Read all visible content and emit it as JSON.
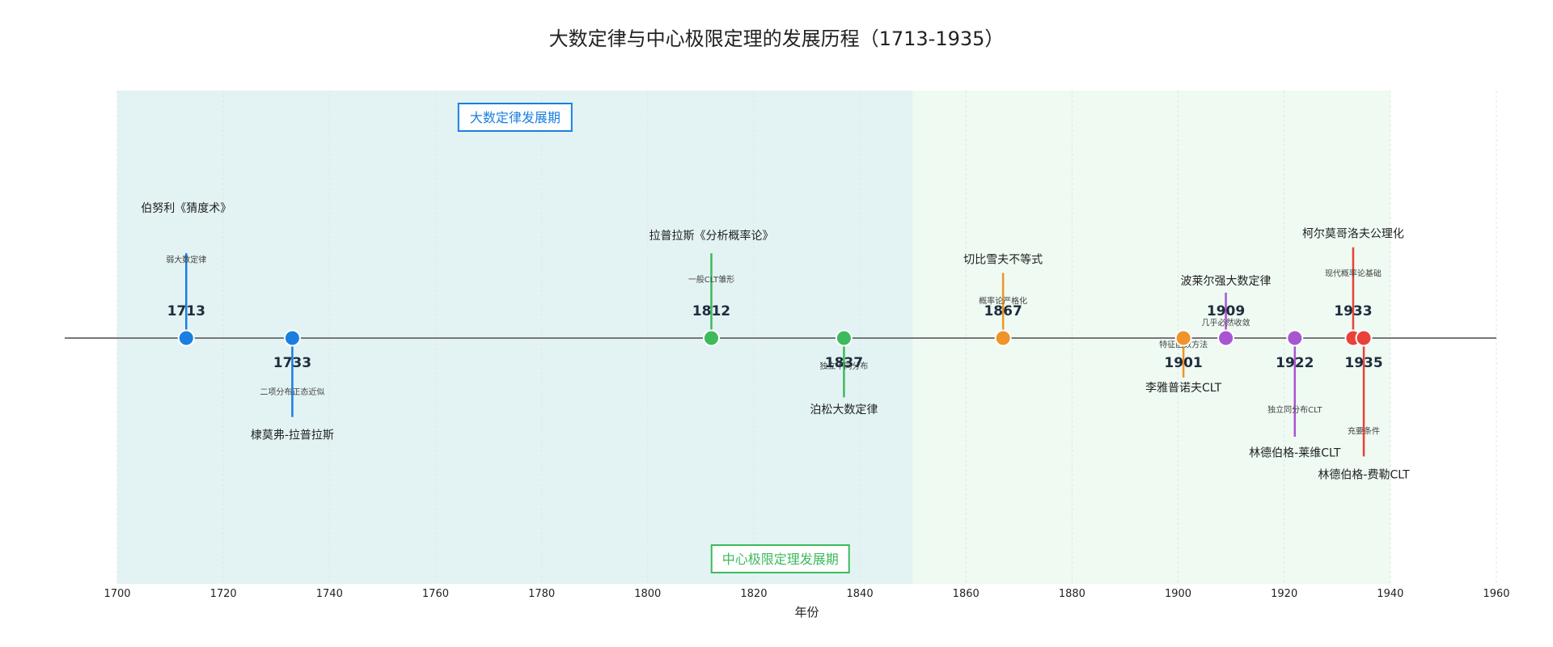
{
  "chart_data": {
    "type": "scatter",
    "title": "大数定律与中心极限定理的发展历程（1713-1935）",
    "xlabel": "年份",
    "ylabel": "",
    "xlim": [
      1700,
      1960
    ],
    "ylim": [
      -1,
      1
    ],
    "xticks": [
      1700,
      1720,
      1740,
      1760,
      1780,
      1800,
      1820,
      1840,
      1860,
      1880,
      1900,
      1920,
      1940,
      1960
    ],
    "xtick_labels": [
      "1700",
      "1720",
      "1740",
      "1760",
      "1780",
      "1800",
      "1820",
      "1840",
      "1860",
      "1880",
      "1900",
      "1920",
      "1940",
      "1960"
    ],
    "grid": true,
    "colors": {
      "blue": "#1a7fe0",
      "green": "#3cba5c",
      "orange": "#f0932a",
      "purple": "#a855d1",
      "red": "#e8423a",
      "period_lln_fill": "#e3f3f4",
      "period_clt_fill": "#eefaf2"
    },
    "periods": [
      {
        "name": "大数定律发展期",
        "x_start": 1700,
        "x_end": 1850,
        "label_year": 1775,
        "label_position": "top",
        "color": "#1a7fe0"
      },
      {
        "name": "中心极限定理发展期",
        "x_start": 1850,
        "x_end": 1940,
        "label_year": 1825,
        "label_position": "bottom",
        "color": "#3cba5c"
      }
    ],
    "events": [
      {
        "year": 1713,
        "year_label": "1713",
        "title": "伯努利《猜度术》",
        "desc": "弱大数定律",
        "side": "above",
        "color": "#1a7fe0",
        "line_height": 0.43,
        "desc_offset": 0.4,
        "title_offset": 0.66
      },
      {
        "year": 1733,
        "year_label": "1733",
        "title": "棣莫弗-拉普拉斯",
        "desc": "二项分布正态近似",
        "side": "below",
        "color": "#1a7fe0",
        "line_height": 0.4,
        "desc_offset": 0.27,
        "title_offset": 0.49
      },
      {
        "year": 1812,
        "year_label": "1812",
        "title": "拉普拉斯《分析概率论》",
        "desc": "一般CLT雏形",
        "side": "above",
        "color": "#3cba5c",
        "line_height": 0.43,
        "desc_offset": 0.3,
        "title_offset": 0.52
      },
      {
        "year": 1837,
        "year_label": "1837",
        "title": "泊松大数定律",
        "desc": "独立不同分布",
        "side": "below",
        "color": "#3cba5c",
        "line_height": 0.3,
        "desc_offset": 0.14,
        "title_offset": 0.36
      },
      {
        "year": 1867,
        "year_label": "1867",
        "title": "切比雪夫不等式",
        "desc": "概率论严格化",
        "side": "above",
        "color": "#f0932a",
        "line_height": 0.33,
        "desc_offset": 0.19,
        "title_offset": 0.4
      },
      {
        "year": 1901,
        "year_label": "1901",
        "title": "李雅普诺夫CLT",
        "desc": "特征函数方法",
        "side": "below",
        "color": "#f0932a",
        "line_height": 0.2,
        "desc_offset": 0.03,
        "title_offset": 0.25
      },
      {
        "year": 1909,
        "year_label": "1909",
        "title": "波莱尔强大数定律",
        "desc": "几乎必然收敛",
        "side": "above",
        "color": "#a855d1",
        "line_height": 0.23,
        "desc_offset": 0.08,
        "title_offset": 0.29
      },
      {
        "year": 1922,
        "year_label": "1922",
        "title": "林德伯格-莱维CLT",
        "desc": "独立同分布CLT",
        "side": "below",
        "color": "#a855d1",
        "line_height": 0.5,
        "desc_offset": 0.36,
        "title_offset": 0.58
      },
      {
        "year": 1933,
        "year_label": "1933",
        "title": "柯尔莫哥洛夫公理化",
        "desc": "现代概率论基础",
        "side": "above",
        "color": "#e8423a",
        "line_height": 0.46,
        "desc_offset": 0.33,
        "title_offset": 0.53
      },
      {
        "year": 1935,
        "year_label": "1935",
        "title": "林德伯格-费勒CLT",
        "desc": "充要条件",
        "side": "below",
        "color": "#e8423a",
        "line_height": 0.6,
        "desc_offset": 0.47,
        "title_offset": 0.69
      }
    ]
  }
}
